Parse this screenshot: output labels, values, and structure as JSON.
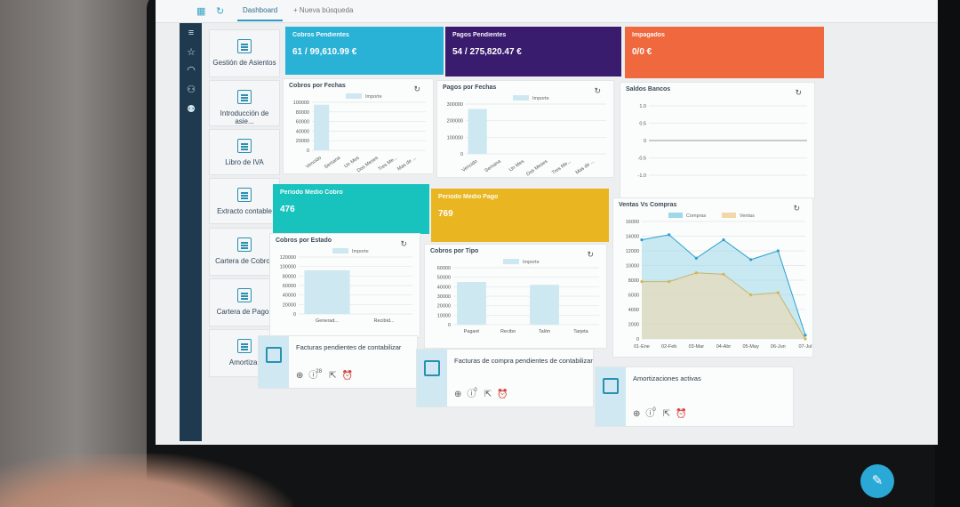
{
  "topbar": {
    "tabs": [
      {
        "label": "Dashboard"
      },
      {
        "label": "+ Nueva búsqueda"
      }
    ]
  },
  "menu": [
    {
      "label": "Gestión de Asientos",
      "icon": "ledger-icon"
    },
    {
      "label": "Introducción de asie...",
      "icon": "entry-icon"
    },
    {
      "label": "Libro de IVA",
      "icon": "phone-book-icon"
    },
    {
      "label": "Extracto contable",
      "icon": "statement-icon"
    },
    {
      "label": "Cartera de Cobros",
      "icon": "receivables-icon"
    },
    {
      "label": "Cartera de Pagos",
      "icon": "payables-icon"
    },
    {
      "label": "Amortizar",
      "icon": "chart-icon"
    }
  ],
  "kpis": [
    {
      "title": "Cobros Pendientes",
      "value": "61 / 99,610.99 €",
      "color": "#29b1d6"
    },
    {
      "title": "Pagos Pendientes",
      "value": "54 / 275,820.47 €",
      "color": "#3a1c6e"
    },
    {
      "title": "Impagados",
      "value": "0/0 €",
      "color": "#f0683d"
    },
    {
      "title": "Periodo Medio Cobro",
      "value": "476",
      "color": "#18c3be"
    },
    {
      "title": "Periodo Medio Pago",
      "value": "769",
      "color": "#e9b521"
    }
  ],
  "chart_data": [
    {
      "type": "bar",
      "title": "Cobros por Fechas",
      "legend": "Importe",
      "categories": [
        "Vencido",
        "Semana",
        "Un Mes",
        "Dos Meses",
        "Tres Me...",
        "Mas de ..."
      ],
      "values": [
        95000,
        0,
        0,
        0,
        0,
        0
      ],
      "yticks": [
        "100000",
        "80000",
        "60000",
        "40000",
        "20000",
        "0"
      ],
      "ylim": [
        0,
        100000
      ]
    },
    {
      "type": "bar",
      "title": "Pagos por Fechas",
      "legend": "Importe",
      "categories": [
        "Vencido",
        "Semana",
        "Un Mes",
        "Dos Meses",
        "Tres Me...",
        "Mas de ..."
      ],
      "values": [
        270000,
        0,
        0,
        0,
        0,
        0
      ],
      "yticks": [
        "300000",
        "200000",
        "100000",
        "0"
      ],
      "ylim": [
        0,
        300000
      ]
    },
    {
      "type": "line",
      "title": "Saldos Bancos",
      "yticks": [
        "1.0",
        "0.5",
        "0",
        "-0.5",
        "-1.0"
      ],
      "ylim": [
        -1,
        1
      ]
    },
    {
      "type": "area",
      "title": "Ventas Vs Compras",
      "categories": [
        "01-Ene",
        "02-Feb",
        "03-Mar",
        "04-Abr",
        "05-May",
        "06-Jun",
        "07-Jul"
      ],
      "series": [
        {
          "name": "Compras",
          "values": [
            13500,
            14200,
            11000,
            13500,
            10800,
            12000,
            500
          ],
          "color": "#9fd8ea"
        },
        {
          "name": "Ventas",
          "values": [
            7800,
            7800,
            9000,
            8800,
            6000,
            6300,
            0
          ],
          "color": "#f2d7a7"
        }
      ],
      "yticks": [
        "16000",
        "14000",
        "12000",
        "10000",
        "8000",
        "6000",
        "4000",
        "2000",
        "0"
      ],
      "ylim": [
        0,
        16000
      ]
    },
    {
      "type": "bar",
      "title": "Cobros por Estado",
      "legend": "Importe",
      "categories": [
        "Generad...",
        "Recibid..."
      ],
      "values": [
        92000,
        0
      ],
      "yticks": [
        "120000",
        "100000",
        "80000",
        "60000",
        "40000",
        "20000",
        "0"
      ],
      "ylim": [
        0,
        120000
      ]
    },
    {
      "type": "bar",
      "title": "Cobros por Tipo",
      "legend": "Importe",
      "categories": [
        "Pagaré",
        "Recibo",
        "Talón",
        "Tarjeta"
      ],
      "values": [
        45000,
        0,
        42000,
        0
      ],
      "yticks": [
        "60000",
        "50000",
        "40000",
        "30000",
        "20000",
        "10000",
        "0"
      ],
      "ylim": [
        0,
        60000
      ]
    }
  ],
  "pending": [
    {
      "title": "Facturas pendientes de contabilizar",
      "badge": "28"
    },
    {
      "title": "Facturas de compra pendientes de contabilizar",
      "badge": "0"
    },
    {
      "title": "Amortizaciones activas",
      "badge": "0"
    }
  ]
}
